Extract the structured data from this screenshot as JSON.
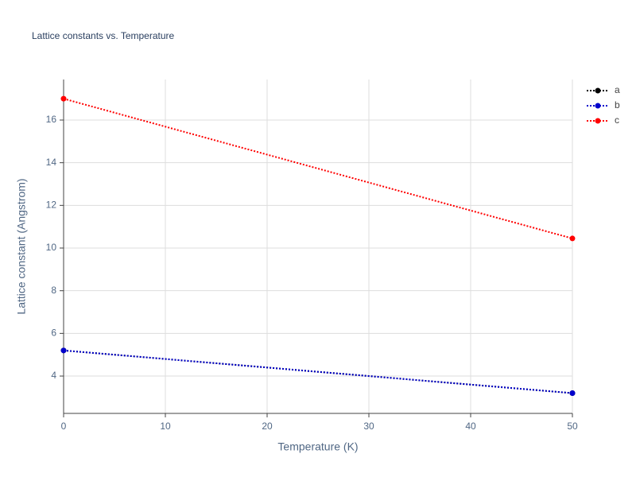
{
  "chart_data": {
    "type": "line",
    "title": "Lattice constants vs. Temperature",
    "x_label": "Temperature (K)",
    "y_label": "Lattice constant (Angstrom)",
    "x": [
      0,
      50
    ],
    "series": [
      {
        "name": "a",
        "color": "#000000",
        "values": [
          5.2,
          3.2
        ]
      },
      {
        "name": "b",
        "color": "#0000cc",
        "values": [
          5.2,
          3.2
        ]
      },
      {
        "name": "c",
        "color": "#ff0000",
        "values": [
          17.0,
          10.45
        ]
      }
    ],
    "xlim": [
      0,
      50
    ],
    "xticks": [
      0,
      10,
      20,
      30,
      40,
      50
    ],
    "ylim": [
      2.25,
      17.9
    ],
    "yticks": [
      4,
      6,
      8,
      10,
      12,
      14,
      16
    ],
    "grid": true,
    "legend": "top-right"
  }
}
